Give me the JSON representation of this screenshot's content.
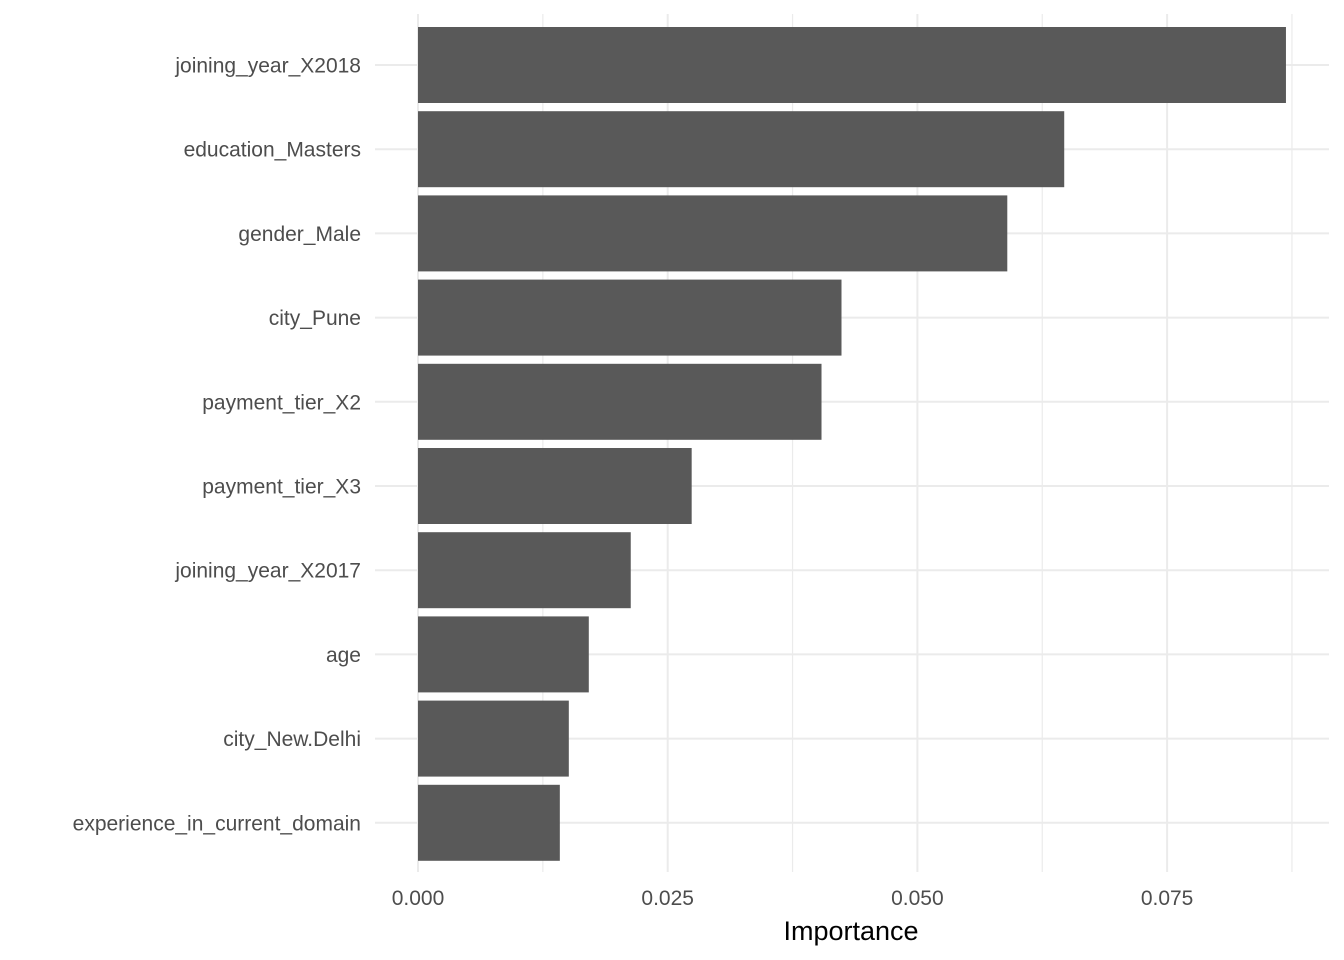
{
  "chart_data": {
    "type": "bar",
    "orientation": "horizontal",
    "title": "",
    "xlabel": "Importance",
    "ylabel": "",
    "categories": [
      "joining_year_X2018",
      "education_Masters",
      "gender_Male",
      "city_Pune",
      "payment_tier_X2",
      "payment_tier_X3",
      "joining_year_X2017",
      "age",
      "city_New.Delhi",
      "experience_in_current_domain"
    ],
    "values": [
      0.0869,
      0.0647,
      0.059,
      0.0424,
      0.0404,
      0.0274,
      0.0213,
      0.0171,
      0.0151,
      0.0142
    ],
    "xlim": [
      0,
      0.0913
    ],
    "x_ticks": [
      0,
      0.025,
      0.05,
      0.075
    ],
    "x_tick_labels": [
      "0.000",
      "0.025",
      "0.050",
      "0.075"
    ],
    "grid": true,
    "legend": null,
    "bar_color": "#595959",
    "grid_color": "#ebebeb"
  }
}
